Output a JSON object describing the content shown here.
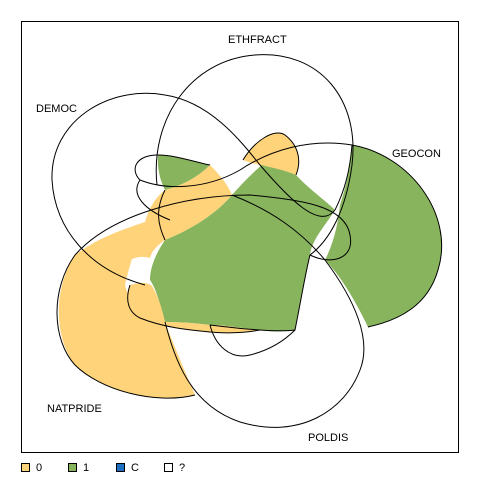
{
  "diagram": {
    "type": "venn-5-set",
    "sets": [
      {
        "id": "ethfract",
        "label": "ETHFRACT"
      },
      {
        "id": "democ",
        "label": "DEMOC"
      },
      {
        "id": "geocon",
        "label": "GEOCON"
      },
      {
        "id": "natpride",
        "label": "NATPRIDE"
      },
      {
        "id": "poldis",
        "label": "POLDIS"
      }
    ],
    "colors": {
      "value_0": "#FFD37A",
      "value_1": "#88B45E",
      "value_C": "#1F6FC0",
      "value_unknown": "#FFFFFF",
      "outline": "#000000"
    }
  },
  "legend": {
    "items": [
      {
        "key": "value_0",
        "label": "0"
      },
      {
        "key": "value_1",
        "label": "1"
      },
      {
        "key": "value_C",
        "label": "C"
      },
      {
        "key": "value_unknown",
        "label": "?"
      }
    ]
  }
}
